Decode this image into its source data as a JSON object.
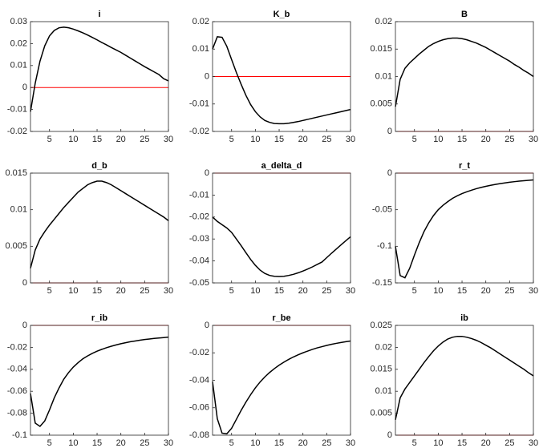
{
  "chart_data": [
    {
      "type": "line",
      "title": "i",
      "x": [
        1,
        2,
        3,
        4,
        5,
        6,
        7,
        8,
        9,
        10,
        11,
        12,
        13,
        14,
        15,
        16,
        17,
        18,
        19,
        20,
        21,
        22,
        23,
        24,
        25,
        26,
        27,
        28,
        29,
        30
      ],
      "series": [
        {
          "color": "#000000",
          "values": [
            -0.011,
            0.002,
            0.012,
            0.019,
            0.0235,
            0.026,
            0.0272,
            0.0275,
            0.0272,
            0.0266,
            0.0258,
            0.0249,
            0.0239,
            0.0228,
            0.0217,
            0.0205,
            0.0194,
            0.0182,
            0.0171,
            0.016,
            0.0147,
            0.0134,
            0.0121,
            0.0108,
            0.0095,
            0.0083,
            0.0071,
            0.0059,
            0.004,
            0.003
          ]
        }
      ],
      "xlim": [
        1,
        30
      ],
      "xticks": [
        5,
        10,
        15,
        20,
        25,
        30
      ],
      "ylim": [
        -0.02,
        0.03
      ],
      "yticks": [
        -0.02,
        -0.01,
        0,
        0.01,
        0.02,
        0.03
      ],
      "hline": 0,
      "hline_color": "#ff0000"
    },
    {
      "type": "line",
      "title": "K_b",
      "x": [
        1,
        2,
        3,
        4,
        5,
        6,
        7,
        8,
        9,
        10,
        11,
        12,
        13,
        14,
        15,
        16,
        17,
        18,
        19,
        20,
        21,
        22,
        23,
        24,
        25,
        26,
        27,
        28,
        29,
        30
      ],
      "series": [
        {
          "color": "#000000",
          "values": [
            0.01,
            0.0145,
            0.0143,
            0.011,
            0.0062,
            0.0015,
            -0.0028,
            -0.0068,
            -0.0102,
            -0.0128,
            -0.0147,
            -0.016,
            -0.0167,
            -0.0171,
            -0.0172,
            -0.0172,
            -0.017,
            -0.0167,
            -0.0164,
            -0.016,
            -0.0156,
            -0.0152,
            -0.0148,
            -0.0144,
            -0.014,
            -0.0136,
            -0.0132,
            -0.0128,
            -0.0124,
            -0.012
          ]
        }
      ],
      "xlim": [
        1,
        30
      ],
      "xticks": [
        5,
        10,
        15,
        20,
        25,
        30
      ],
      "ylim": [
        -0.02,
        0.02
      ],
      "yticks": [
        -0.02,
        -0.01,
        0,
        0.01,
        0.02
      ],
      "hline": 0,
      "hline_color": "#ff0000"
    },
    {
      "type": "line",
      "title": "B",
      "x": [
        1,
        2,
        3,
        4,
        5,
        6,
        7,
        8,
        9,
        10,
        11,
        12,
        13,
        14,
        15,
        16,
        17,
        18,
        19,
        20,
        21,
        22,
        23,
        24,
        25,
        26,
        27,
        28,
        29,
        30
      ],
      "series": [
        {
          "color": "#000000",
          "values": [
            0.0045,
            0.0095,
            0.0115,
            0.0125,
            0.0133,
            0.0141,
            0.0148,
            0.0155,
            0.016,
            0.0164,
            0.0167,
            0.0169,
            0.017,
            0.017,
            0.0169,
            0.0167,
            0.0164,
            0.0161,
            0.0157,
            0.0153,
            0.0148,
            0.0143,
            0.0138,
            0.0133,
            0.0128,
            0.0122,
            0.0117,
            0.0111,
            0.0106,
            0.01
          ]
        }
      ],
      "xlim": [
        1,
        30
      ],
      "xticks": [
        5,
        10,
        15,
        20,
        25,
        30
      ],
      "ylim": [
        0,
        0.02
      ],
      "yticks": [
        0,
        0.005,
        0.01,
        0.015,
        0.02
      ],
      "hline": 0,
      "hline_color": "#ff0000"
    },
    {
      "type": "line",
      "title": "d_b",
      "x": [
        1,
        2,
        3,
        4,
        5,
        6,
        7,
        8,
        9,
        10,
        11,
        12,
        13,
        14,
        15,
        16,
        17,
        18,
        19,
        20,
        21,
        22,
        23,
        24,
        25,
        26,
        27,
        28,
        29,
        30
      ],
      "series": [
        {
          "color": "#000000",
          "values": [
            0.002,
            0.0045,
            0.006,
            0.007,
            0.0079,
            0.0087,
            0.0095,
            0.0103,
            0.011,
            0.0117,
            0.0124,
            0.0129,
            0.0134,
            0.0137,
            0.0139,
            0.0139,
            0.0137,
            0.0134,
            0.013,
            0.0126,
            0.0122,
            0.0118,
            0.0114,
            0.011,
            0.0106,
            0.0102,
            0.0098,
            0.0094,
            0.009,
            0.0085
          ]
        }
      ],
      "xlim": [
        1,
        30
      ],
      "xticks": [
        5,
        10,
        15,
        20,
        25,
        30
      ],
      "ylim": [
        0,
        0.015
      ],
      "yticks": [
        0,
        0.005,
        0.01,
        0.015
      ],
      "hline": 0,
      "hline_color": "#ff0000"
    },
    {
      "type": "line",
      "title": "a_delta_d",
      "x": [
        1,
        2,
        3,
        4,
        5,
        6,
        7,
        8,
        9,
        10,
        11,
        12,
        13,
        14,
        15,
        16,
        17,
        18,
        19,
        20,
        21,
        22,
        23,
        24,
        25,
        26,
        27,
        28,
        29,
        30
      ],
      "series": [
        {
          "color": "#000000",
          "values": [
            -0.02,
            -0.022,
            -0.0235,
            -0.025,
            -0.027,
            -0.03,
            -0.033,
            -0.0362,
            -0.0393,
            -0.042,
            -0.0442,
            -0.0457,
            -0.0466,
            -0.047,
            -0.0471,
            -0.047,
            -0.0466,
            -0.0461,
            -0.0454,
            -0.0446,
            -0.0437,
            -0.0427,
            -0.0416,
            -0.0405,
            -0.0385,
            -0.0365,
            -0.0346,
            -0.0327,
            -0.0308,
            -0.029
          ]
        }
      ],
      "xlim": [
        1,
        30
      ],
      "xticks": [
        5,
        10,
        15,
        20,
        25,
        30
      ],
      "ylim": [
        -0.05,
        0
      ],
      "yticks": [
        -0.05,
        -0.04,
        -0.03,
        -0.02,
        -0.01,
        0
      ],
      "hline": 0,
      "hline_color": "#ff0000"
    },
    {
      "type": "line",
      "title": "r_t",
      "x": [
        1,
        2,
        3,
        4,
        5,
        6,
        7,
        8,
        9,
        10,
        11,
        12,
        13,
        14,
        15,
        16,
        17,
        18,
        19,
        20,
        21,
        22,
        23,
        24,
        25,
        26,
        27,
        28,
        29,
        30
      ],
      "series": [
        {
          "color": "#000000",
          "values": [
            -0.1,
            -0.14,
            -0.143,
            -0.13,
            -0.112,
            -0.095,
            -0.08,
            -0.068,
            -0.058,
            -0.05,
            -0.044,
            -0.039,
            -0.0345,
            -0.031,
            -0.028,
            -0.0255,
            -0.0233,
            -0.0213,
            -0.0196,
            -0.0181,
            -0.0167,
            -0.0155,
            -0.0144,
            -0.0134,
            -0.0125,
            -0.0117,
            -0.011,
            -0.0104,
            -0.0098,
            -0.0093
          ]
        }
      ],
      "xlim": [
        1,
        30
      ],
      "xticks": [
        5,
        10,
        15,
        20,
        25,
        30
      ],
      "ylim": [
        -0.15,
        0
      ],
      "yticks": [
        -0.15,
        -0.1,
        -0.05,
        0
      ],
      "hline": 0,
      "hline_color": "#ff0000"
    },
    {
      "type": "line",
      "title": "r_ib",
      "x": [
        1,
        2,
        3,
        4,
        5,
        6,
        7,
        8,
        9,
        10,
        11,
        12,
        13,
        14,
        15,
        16,
        17,
        18,
        19,
        20,
        21,
        22,
        23,
        24,
        25,
        26,
        27,
        28,
        29,
        30
      ],
      "series": [
        {
          "color": "#000000",
          "values": [
            -0.062,
            -0.089,
            -0.092,
            -0.087,
            -0.077,
            -0.066,
            -0.057,
            -0.049,
            -0.043,
            -0.038,
            -0.034,
            -0.0305,
            -0.0278,
            -0.0255,
            -0.0235,
            -0.0218,
            -0.0203,
            -0.019,
            -0.0178,
            -0.0167,
            -0.0158,
            -0.0149,
            -0.0142,
            -0.0135,
            -0.0129,
            -0.0124,
            -0.0119,
            -0.0115,
            -0.0111,
            -0.0107
          ]
        }
      ],
      "xlim": [
        1,
        30
      ],
      "xticks": [
        5,
        10,
        15,
        20,
        25,
        30
      ],
      "ylim": [
        -0.1,
        0
      ],
      "yticks": [
        -0.1,
        -0.08,
        -0.06,
        -0.04,
        -0.02,
        0
      ],
      "hline": 0,
      "hline_color": "#ff0000"
    },
    {
      "type": "line",
      "title": "r_be",
      "x": [
        1,
        2,
        3,
        4,
        5,
        6,
        7,
        8,
        9,
        10,
        11,
        12,
        13,
        14,
        15,
        16,
        17,
        18,
        19,
        20,
        21,
        22,
        23,
        24,
        25,
        26,
        27,
        28,
        29,
        30
      ],
      "series": [
        {
          "color": "#000000",
          "values": [
            -0.041,
            -0.068,
            -0.0785,
            -0.079,
            -0.075,
            -0.0685,
            -0.062,
            -0.056,
            -0.0505,
            -0.0455,
            -0.0412,
            -0.0375,
            -0.0343,
            -0.0315,
            -0.029,
            -0.0268,
            -0.0248,
            -0.023,
            -0.0214,
            -0.02,
            -0.0187,
            -0.0175,
            -0.0164,
            -0.0155,
            -0.0146,
            -0.0138,
            -0.0131,
            -0.0125,
            -0.0119,
            -0.0114
          ]
        }
      ],
      "xlim": [
        1,
        30
      ],
      "xticks": [
        5,
        10,
        15,
        20,
        25,
        30
      ],
      "ylim": [
        -0.08,
        0
      ],
      "yticks": [
        -0.08,
        -0.06,
        -0.04,
        -0.02,
        0
      ],
      "hline": 0,
      "hline_color": "#ff0000"
    },
    {
      "type": "line",
      "title": "ib",
      "x": [
        1,
        2,
        3,
        4,
        5,
        6,
        7,
        8,
        9,
        10,
        11,
        12,
        13,
        14,
        15,
        16,
        17,
        18,
        19,
        20,
        21,
        22,
        23,
        24,
        25,
        26,
        27,
        28,
        29,
        30
      ],
      "series": [
        {
          "color": "#000000",
          "values": [
            0.0035,
            0.0085,
            0.0105,
            0.012,
            0.0135,
            0.015,
            0.0165,
            0.0179,
            0.0192,
            0.0203,
            0.0212,
            0.0219,
            0.0223,
            0.0225,
            0.0225,
            0.0223,
            0.022,
            0.0216,
            0.0211,
            0.0205,
            0.0199,
            0.0192,
            0.0185,
            0.0178,
            0.0171,
            0.0164,
            0.0157,
            0.015,
            0.0142,
            0.0135
          ]
        }
      ],
      "xlim": [
        1,
        30
      ],
      "xticks": [
        5,
        10,
        15,
        20,
        25,
        30
      ],
      "ylim": [
        0,
        0.025
      ],
      "yticks": [
        0,
        0.005,
        0.01,
        0.015,
        0.02,
        0.025
      ],
      "hline": 0,
      "hline_color": "#ff0000"
    }
  ]
}
